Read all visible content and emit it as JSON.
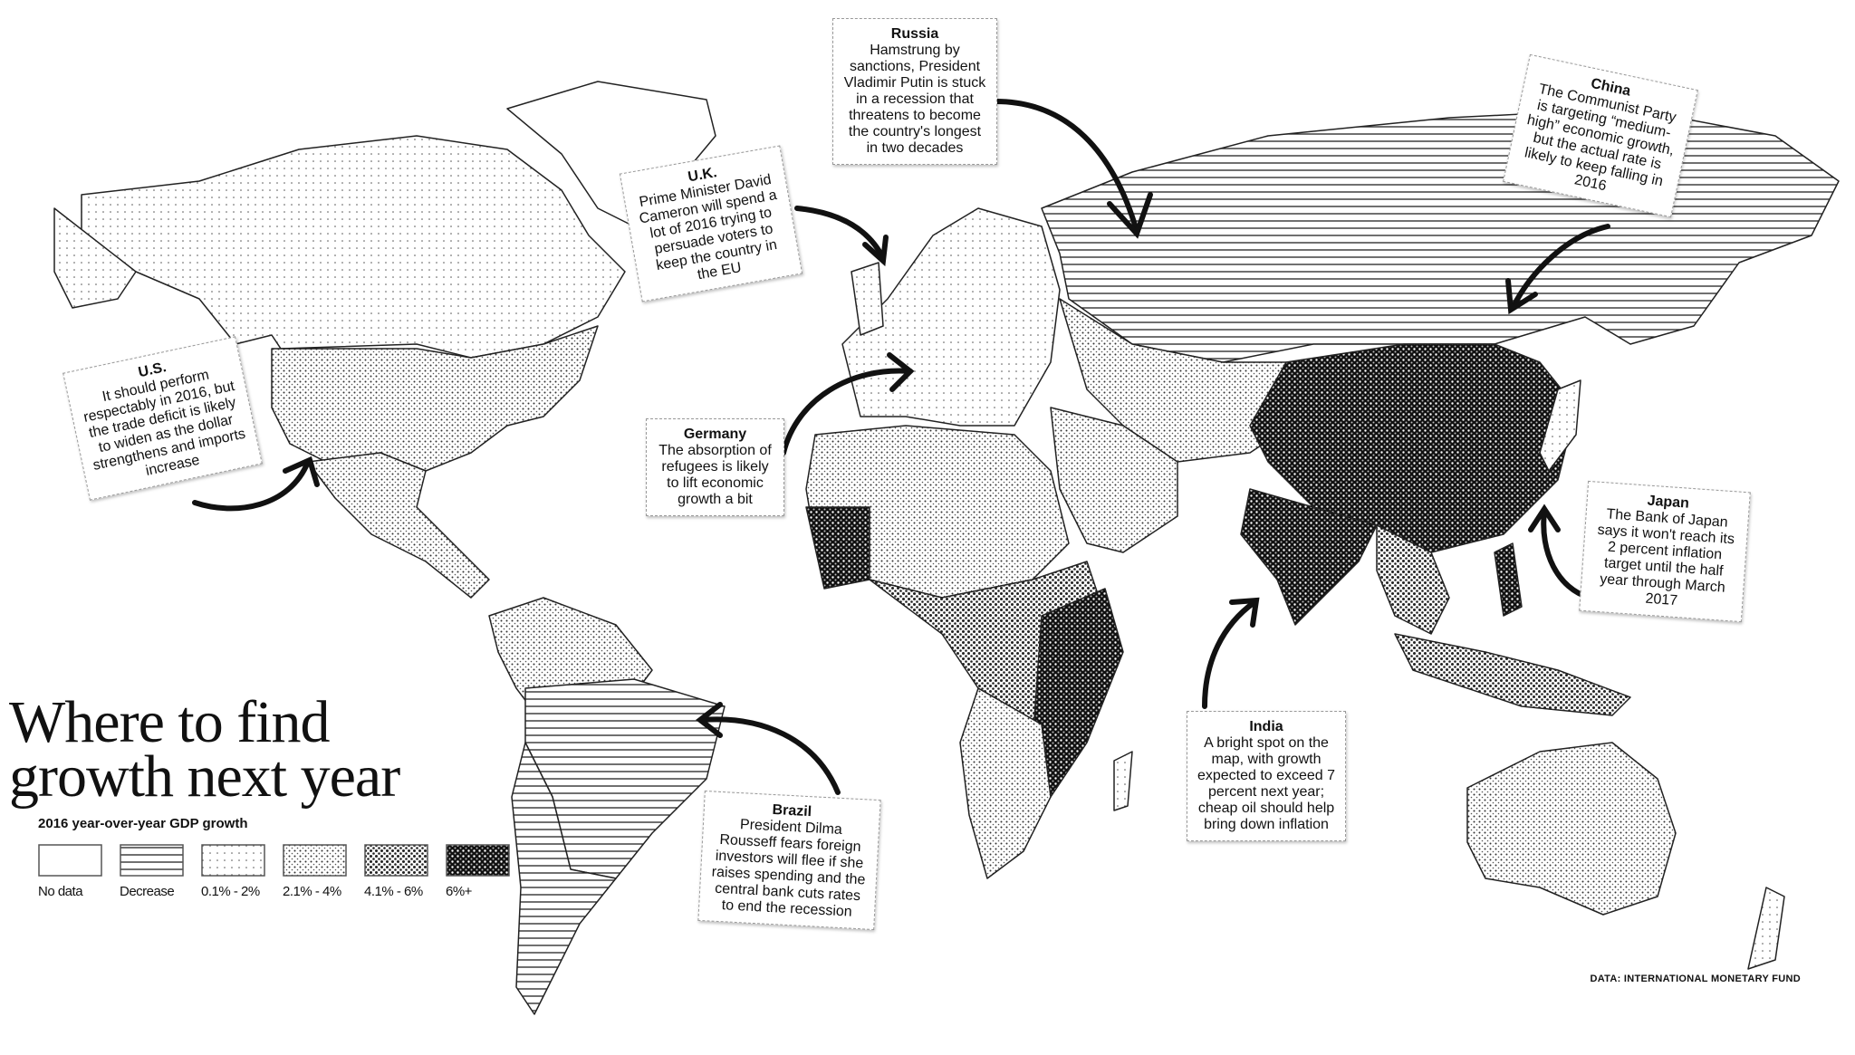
{
  "title": "Where to find growth next year",
  "title_lines": [
    "Where to find",
    "growth next year"
  ],
  "legend": {
    "title": "2016 year-over-year GDP growth",
    "items": [
      {
        "label": "No data",
        "pattern": "none"
      },
      {
        "label": "Decrease",
        "pattern": "horizontal-lines"
      },
      {
        "label": "0.1% - 2%",
        "pattern": "sparse-dots"
      },
      {
        "label": "2.1% - 4%",
        "pattern": "light-dots"
      },
      {
        "label": "4.1% - 6%",
        "pattern": "medium-dots"
      },
      {
        "label": "6%+",
        "pattern": "dense-dark"
      }
    ]
  },
  "notes": [
    {
      "id": "russia",
      "heading": "Russia",
      "body": "Hamstrung by sanctions, President Vladimir Putin is stuck in a recession that threatens to become the country's longest in two decades"
    },
    {
      "id": "uk",
      "heading": "U.K.",
      "body": "Prime Minister David Cameron will spend a lot of 2016 trying to persuade voters to keep the country in the EU"
    },
    {
      "id": "us",
      "heading": "U.S.",
      "body": "It should perform respectably in 2016, but the trade deficit is likely to widen as the dollar strengthens and imports increase"
    },
    {
      "id": "germany",
      "heading": "Germany",
      "body": "The absorption of refugees is likely to lift economic growth a bit"
    },
    {
      "id": "china",
      "heading": "China",
      "body": "The Communist Party is targeting “medium-high” economic growth, but the actual rate is likely to keep falling in 2016"
    },
    {
      "id": "japan",
      "heading": "Japan",
      "body": "The Bank of Japan says it won't reach its 2 percent inflation target until the half year through March 2017"
    },
    {
      "id": "india",
      "heading": "India",
      "body": "A bright spot on the map, with growth expected to exceed 7 percent next year; cheap oil should help bring down inflation"
    },
    {
      "id": "brazil",
      "heading": "Brazil",
      "body": "President Dilma Rousseff fears foreign investors will flee if she raises spending and the central bank cuts rates to end the recession"
    }
  ],
  "regions": [
    {
      "name": "Canada",
      "category": "0.1% - 2%"
    },
    {
      "name": "United States",
      "category": "2.1% - 4%"
    },
    {
      "name": "Mexico",
      "category": "2.1% - 4%"
    },
    {
      "name": "Greenland",
      "category": "No data"
    },
    {
      "name": "Brazil",
      "category": "Decrease"
    },
    {
      "name": "Russia",
      "category": "Decrease"
    },
    {
      "name": "China",
      "category": "6%+"
    },
    {
      "name": "India",
      "category": "6%+"
    },
    {
      "name": "Australia",
      "category": "2.1% - 4%"
    },
    {
      "name": "Europe",
      "category": "0.1% - 2%"
    }
  ],
  "source": "DATA: INTERNATIONAL MONETARY FUND"
}
